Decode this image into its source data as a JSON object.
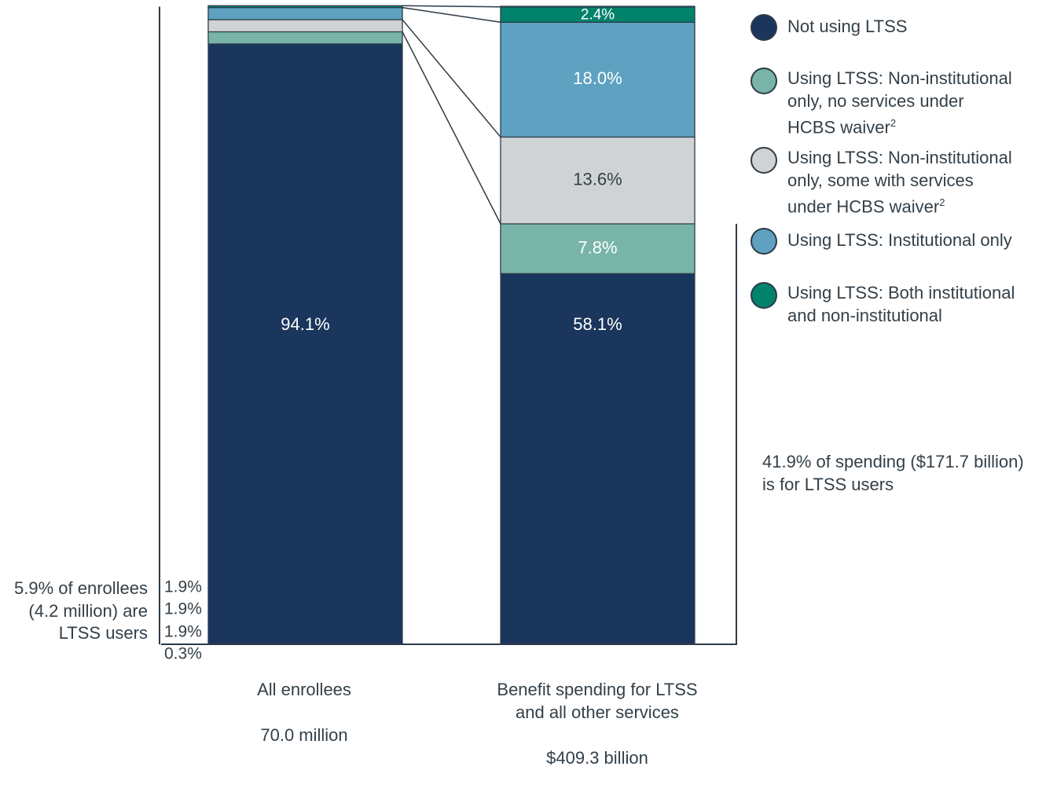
{
  "chart_data": {
    "type": "bar",
    "stacked": true,
    "categories": [
      {
        "label": "All enrollees",
        "total": "70.0 million"
      },
      {
        "label": "Benefit spending for LTSS\nand all other services",
        "total": "$409.3 billion"
      }
    ],
    "series": [
      {
        "name": "Not using LTSS",
        "color": "#1b365d",
        "values": [
          94.1,
          58.1
        ],
        "labels": [
          "94.1%",
          "58.1%"
        ],
        "text_color": "#ffffff"
      },
      {
        "name": "Using LTSS: Non-institutional only, no services under HCBS waiver",
        "footnote": "2",
        "color": "#78b4a8",
        "values": [
          1.9,
          7.8
        ],
        "labels": [
          "1.9%",
          "7.8%"
        ],
        "text_color": "#ffffff"
      },
      {
        "name": "Using LTSS: Non-institutional only, some with services under HCBS waiver",
        "footnote": "2",
        "color": "#d0d3d4",
        "values": [
          1.9,
          13.6
        ],
        "labels": [
          "1.9%",
          "13.6%"
        ],
        "text_color": "#333f48"
      },
      {
        "name": "Using LTSS: Institutional only",
        "color": "#5ea1c0",
        "values": [
          1.9,
          18.0
        ],
        "labels": [
          "1.9%",
          "18.0%"
        ],
        "text_color": "#ffffff"
      },
      {
        "name": "Using LTSS: Both institutional and non-institutional",
        "color": "#00826b",
        "values": [
          0.3,
          2.4
        ],
        "labels": [
          "0.3%",
          "2.4%"
        ],
        "text_color": "#ffffff"
      }
    ],
    "ylim": [
      0,
      100
    ],
    "legend_position": "right",
    "grid": false
  },
  "legend": [
    {
      "text": "Not using LTSS",
      "sup": ""
    },
    {
      "text": "Using LTSS: Non-institutional\nonly, no services under\nHCBS waiver",
      "sup": "2"
    },
    {
      "text": "Using LTSS: Non-institutional\nonly, some with services\nunder HCBS waiver",
      "sup": "2"
    },
    {
      "text": "Using LTSS: Institutional only",
      "sup": ""
    },
    {
      "text": "Using LTSS: Both institutional\nand non-institutional",
      "sup": ""
    }
  ],
  "annotations": {
    "enrollees_note": "5.9% of enrollees\n(4.2 million) are\nLTSS users",
    "spending_note": "41.9% of spending ($171.7 billion)\nis for LTSS users"
  }
}
